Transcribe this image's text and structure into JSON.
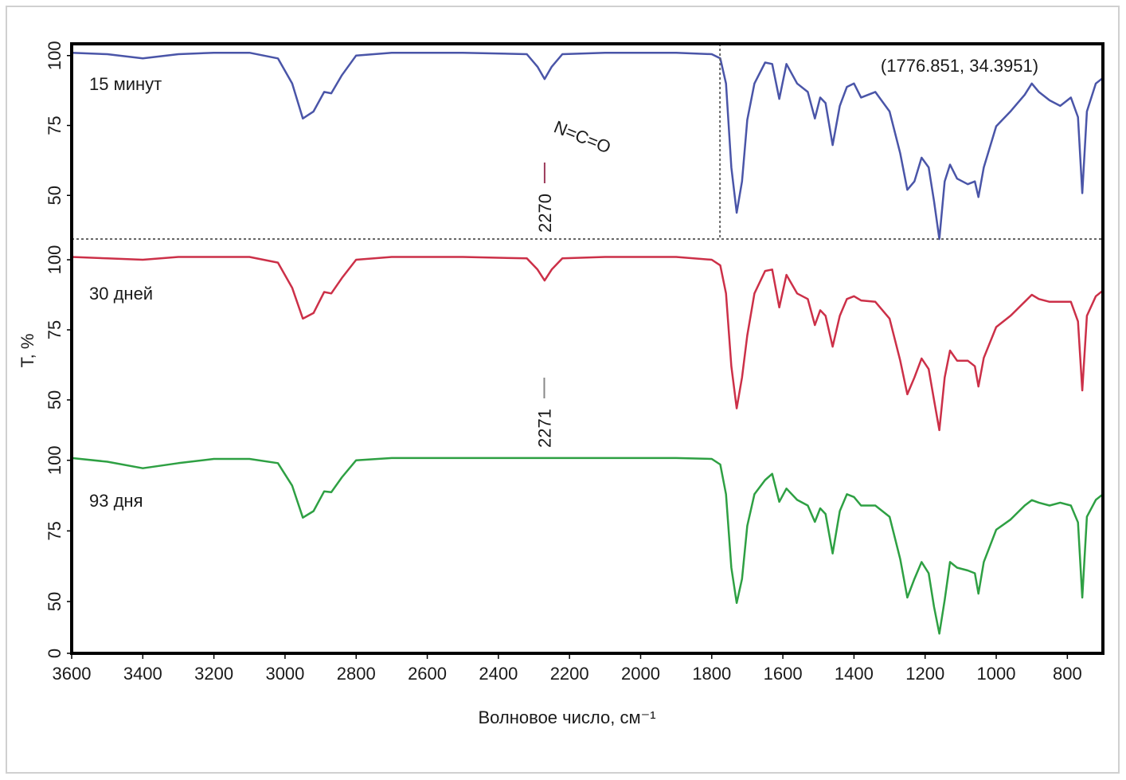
{
  "chart_data": {
    "type": "line",
    "xlabel": "Волновое число, см⁻¹",
    "ylabel": "T, %",
    "xlim": [
      3600,
      700
    ],
    "xticks": [
      3600,
      3400,
      3200,
      3000,
      2800,
      2600,
      2400,
      2200,
      2000,
      1800,
      1600,
      1400,
      1200,
      1000,
      800
    ],
    "x": [
      3600,
      3500,
      3400,
      3300,
      3200,
      3100,
      3020,
      2980,
      2950,
      2920,
      2890,
      2870,
      2840,
      2800,
      2700,
      2500,
      2320,
      2290,
      2270,
      2250,
      2220,
      2100,
      1900,
      1800,
      1776,
      1760,
      1745,
      1730,
      1715,
      1700,
      1680,
      1650,
      1630,
      1610,
      1590,
      1560,
      1530,
      1510,
      1495,
      1480,
      1460,
      1440,
      1420,
      1400,
      1380,
      1340,
      1300,
      1270,
      1250,
      1230,
      1210,
      1190,
      1175,
      1160,
      1145,
      1130,
      1110,
      1080,
      1060,
      1050,
      1035,
      1000,
      960,
      920,
      900,
      880,
      850,
      820,
      790,
      770,
      758,
      745,
      720,
      700
    ],
    "series": [
      {
        "name": "15 минут",
        "color": "#4a55a8",
        "ylim": [
          34.4,
          104.2
        ],
        "yticks": [
          50,
          75,
          100
        ],
        "values": [
          101,
          100.5,
          99,
          100.5,
          101,
          101,
          99,
          90,
          77.5,
          80,
          87,
          86.5,
          93,
          100,
          101,
          101,
          100.5,
          96,
          91.6,
          96,
          100.5,
          101,
          101,
          100.5,
          99,
          90,
          60,
          43.8,
          55,
          77,
          90,
          97.5,
          97,
          84.5,
          97,
          90,
          87,
          77.5,
          85,
          83,
          68,
          82,
          88.8,
          90,
          85,
          87,
          80,
          65,
          52,
          55,
          63.5,
          60,
          48,
          34.4,
          55,
          61,
          56,
          54,
          55,
          49.4,
          60,
          74.7,
          80,
          86,
          90,
          87,
          84,
          82,
          85,
          78,
          50.8,
          80,
          90,
          92
        ]
      },
      {
        "name": "30 дней",
        "color": "#cc3048",
        "ylim": [
          33.5,
          107.4
        ],
        "yticks": [
          50,
          75,
          100
        ],
        "values": [
          101,
          100.5,
          100,
          101,
          101,
          101,
          99,
          90,
          79,
          81,
          88.5,
          88,
          93.5,
          100,
          101,
          101,
          100.5,
          96.5,
          92.6,
          96.5,
          100.5,
          101,
          101,
          100,
          98,
          88,
          62,
          47,
          58,
          73,
          88,
          96,
          96.5,
          83,
          94.6,
          88,
          86,
          76.7,
          82,
          80,
          69,
          80,
          86,
          87,
          85.5,
          85,
          79,
          64,
          52,
          58,
          64.8,
          61,
          50,
          39.2,
          58,
          67.6,
          64,
          64,
          62,
          54.8,
          65,
          76,
          80,
          85,
          87.5,
          86,
          85,
          85,
          85,
          78,
          53.4,
          80,
          87,
          89
        ]
      },
      {
        "name": "93 дня",
        "color": "#2ea043",
        "ylim": [
          0,
          105
        ],
        "yticks": [
          0,
          50,
          75,
          100
        ],
        "axis_break": [
          0,
          50
        ],
        "values": [
          100.8,
          99.5,
          97.2,
          99,
          100.5,
          100.5,
          99,
          91,
          79.7,
          82,
          89,
          88.7,
          94,
          100,
          100.8,
          100.8,
          100.8,
          100.8,
          100.8,
          100.8,
          100.8,
          100.8,
          100.8,
          100.5,
          98.5,
          88,
          62,
          48.6,
          58,
          76.8,
          88,
          93,
          95.2,
          85.3,
          90,
          86,
          84,
          78.2,
          83,
          81,
          67,
          82,
          88,
          87,
          84,
          84,
          80,
          65,
          51.4,
          58,
          64,
          60,
          45,
          19,
          50.5,
          64,
          62,
          61,
          60,
          52.8,
          64,
          75.4,
          79,
          84,
          85.9,
          85,
          84,
          85,
          84,
          78,
          51.4,
          80,
          86,
          88
        ]
      }
    ],
    "crosshair": {
      "x": 1776.851,
      "y": 34.3951,
      "label": "(1776.851, 34.3951)",
      "color": "#f0900a"
    },
    "group_label": "N=C=O",
    "annotations": [
      {
        "value": 2270,
        "color": "#9b3a5a"
      },
      {
        "value": 2271,
        "color": "#888888"
      }
    ]
  }
}
